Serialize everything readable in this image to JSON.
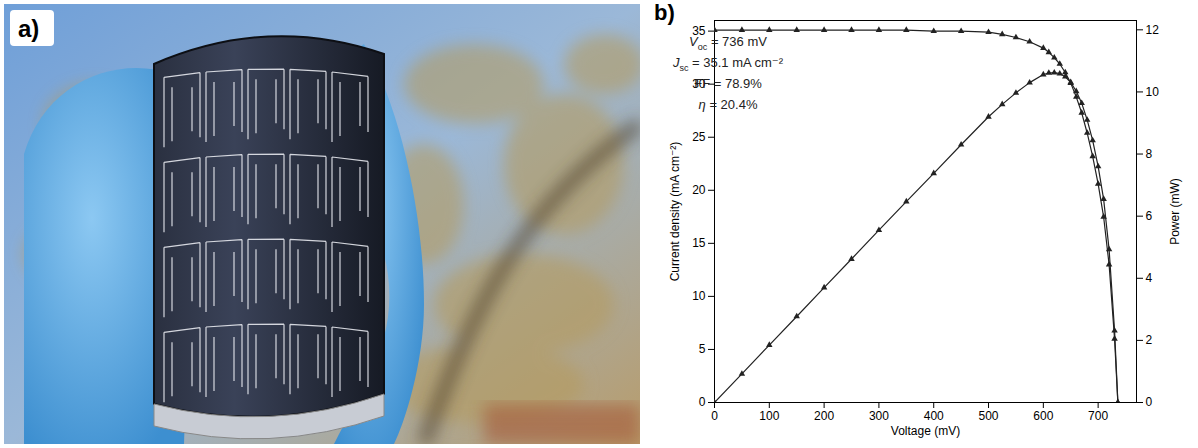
{
  "panel_a": {
    "label": "a)"
  },
  "chart_data": {
    "type": "line",
    "panel_label": "b)",
    "x_label": "Voltage (mV)",
    "y_label": "Current density (mA cm⁻²)",
    "y2_label": "Power (mW)",
    "x": [
      0,
      50,
      100,
      150,
      200,
      250,
      300,
      350,
      400,
      450,
      500,
      525,
      550,
      575,
      600,
      610,
      620,
      630,
      640,
      650,
      660,
      670,
      680,
      690,
      700,
      710,
      720,
      730,
      736
    ],
    "series": [
      {
        "color": "#222222",
        "marker": "triangle",
        "values": [
          35.1,
          35.1,
          35.1,
          35.1,
          35.1,
          35.1,
          35.1,
          35.1,
          35.0,
          35.0,
          34.9,
          34.7,
          34.4,
          34.0,
          33.4,
          33.0,
          32.5,
          31.9,
          31.1,
          30.1,
          28.8,
          27.3,
          25.4,
          23.2,
          20.6,
          17.5,
          13.0,
          6.0,
          0
        ]
      },
      {
        "color": "#222222",
        "marker": "triangle",
        "axis": "y2",
        "values": [
          0,
          0.92,
          1.85,
          2.77,
          3.7,
          4.62,
          5.55,
          6.47,
          7.38,
          8.3,
          9.2,
          9.6,
          9.97,
          10.3,
          10.56,
          10.61,
          10.62,
          10.59,
          10.49,
          10.31,
          10.02,
          9.64,
          9.1,
          8.44,
          7.6,
          6.55,
          4.93,
          2.31,
          0
        ]
      }
    ],
    "xlim": [
      0,
      770
    ],
    "xticks": [
      0,
      100,
      200,
      300,
      400,
      500,
      600,
      700
    ],
    "ylim": [
      0,
      36
    ],
    "yticks": [
      0,
      5,
      10,
      15,
      20,
      25,
      30,
      35
    ],
    "y2lim": [
      0,
      12.3
    ],
    "y2ticks": [
      0,
      2,
      4,
      6,
      8,
      10,
      12
    ],
    "annotations": [
      {
        "symbol": "V",
        "subscript": "oc",
        "text": " = 736 mV"
      },
      {
        "symbol": "J",
        "subscript": "sc",
        "text": " = 35.1 mA cm⁻²"
      },
      {
        "symbol": "FF",
        "text": " = 78.9%"
      },
      {
        "symbol": "η",
        "text": " = 20.4%"
      }
    ]
  }
}
